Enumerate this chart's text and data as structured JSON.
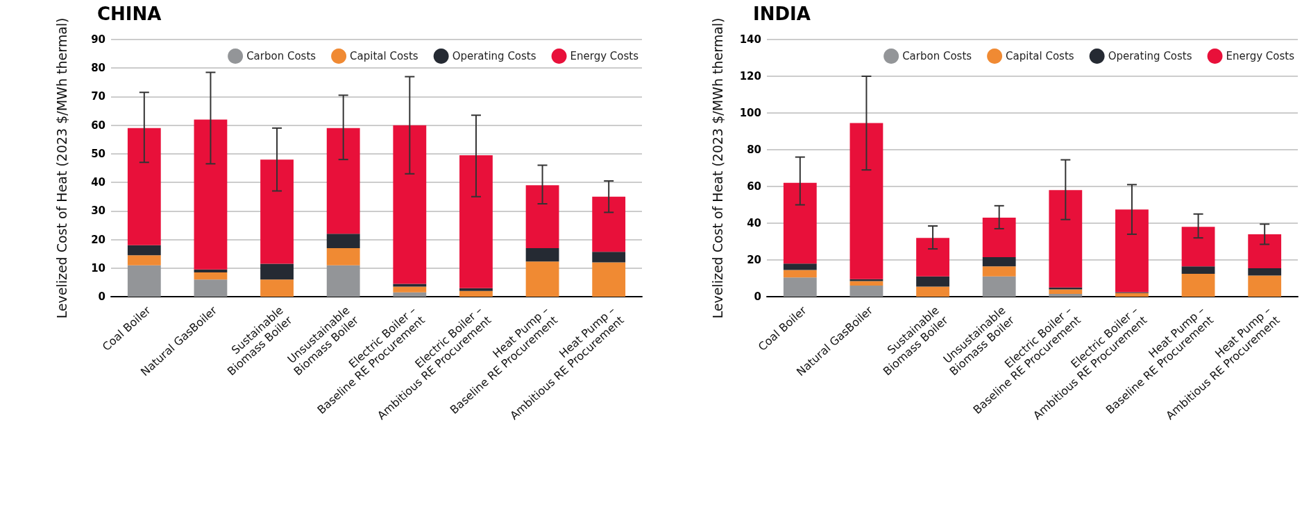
{
  "chart_data": [
    {
      "type": "bar",
      "title": "CHINA",
      "ylabel": "Levelized Cost of Heat (2023 $/MWh thermal)",
      "stacked": true,
      "grid": "y",
      "legend": "top right",
      "categories": [
        "Coal Boiler",
        "Natural GasBoiler",
        "Sustainable\nBiomass Boiler",
        "Unsustainable\nBiomass Boiler",
        "Electric Boiler –\nBaseline RE Procurement",
        "Electric Boiler –\nAmbitious RE Procurement",
        "Heat Pump –\nBaseline RE Procurement",
        "Heat Pump –\nAmbitious RE Procurement"
      ],
      "ylim": [
        0,
        90
      ],
      "yticks": [
        0,
        10,
        20,
        30,
        40,
        50,
        60,
        70,
        80,
        90
      ],
      "series": [
        {
          "name": "Carbon Costs",
          "color": "#939598",
          "values": [
            11,
            6,
            0,
            11,
            1.5,
            0,
            0,
            0
          ]
        },
        {
          "name": "Capital Costs",
          "color": "#f08a33",
          "values": [
            3.5,
            2.5,
            6,
            6,
            2,
            2,
            12.3,
            12
          ]
        },
        {
          "name": "Operating Costs",
          "color": "#252a33",
          "values": [
            3.5,
            1,
            5.5,
            5,
            1,
            1,
            4.7,
            3.7
          ]
        },
        {
          "name": "Energy Costs",
          "color": "#e8103a",
          "values": [
            41,
            52.5,
            36.5,
            37,
            55.5,
            46.5,
            22,
            19.3
          ],
          "errors": [
            [
              47,
              71.5
            ],
            [
              46.5,
              78.5
            ],
            [
              37,
              59
            ],
            [
              48,
              70.5
            ],
            [
              43,
              77
            ],
            [
              35,
              63.5
            ],
            [
              32.5,
              46
            ],
            [
              29.5,
              40.5
            ]
          ]
        }
      ]
    },
    {
      "type": "bar",
      "title": "INDIA",
      "ylabel": "Levelized Cost of Heat (2023 $/MWh thermal)",
      "stacked": true,
      "grid": "y",
      "legend": "top right",
      "categories": [
        "Coal Boiler",
        "Natural GasBoiler",
        "Sustainable\nBiomass Boiler",
        "Unsustainable\nBiomass Boiler",
        "Electric Boiler –\nBaseline RE Procurement",
        "Electric Boiler –\nAmbitious RE Procurement",
        "Heat Pump –\nBaseline RE Procurement",
        "Heat Pump –\nAmbitious RE Procurement"
      ],
      "ylim": [
        0,
        140
      ],
      "yticks": [
        0,
        20,
        40,
        60,
        80,
        100,
        120,
        140
      ],
      "series": [
        {
          "name": "Carbon Costs",
          "color": "#939598",
          "values": [
            10.5,
            6,
            0,
            11,
            1.5,
            0,
            0,
            0
          ]
        },
        {
          "name": "Capital Costs",
          "color": "#f08a33",
          "values": [
            4,
            2.5,
            5.5,
            5.5,
            2.5,
            2,
            12.5,
            11.5
          ]
        },
        {
          "name": "Operating Costs",
          "color": "#252a33",
          "values": [
            3.5,
            1,
            5.5,
            5,
            1,
            0.5,
            4,
            4
          ]
        },
        {
          "name": "Energy Costs",
          "color": "#e8103a",
          "values": [
            44,
            85,
            21,
            21.5,
            53,
            45,
            21.5,
            18.5
          ],
          "errors": [
            [
              50,
              76
            ],
            [
              69,
              120
            ],
            [
              26,
              38.5
            ],
            [
              37,
              49.5
            ],
            [
              42,
              74.5
            ],
            [
              34,
              61
            ],
            [
              32,
              45
            ],
            [
              28.5,
              39.5
            ]
          ]
        }
      ]
    }
  ]
}
